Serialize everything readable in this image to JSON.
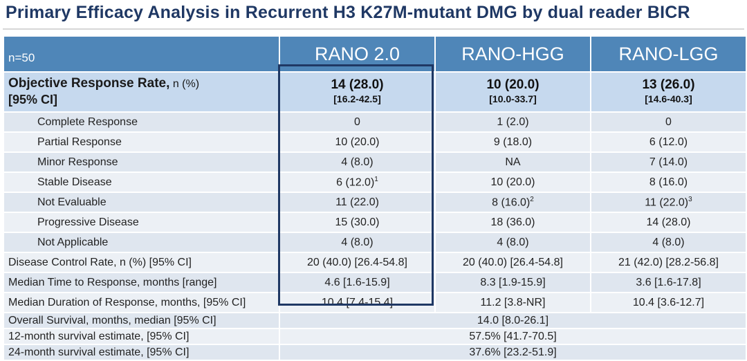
{
  "title": "Primary Efficacy Analysis in Recurrent H3 K27M-mutant DMG by dual reader BICR",
  "header": {
    "n": "n=50",
    "columns": [
      "RANO 2.0",
      "RANO-HGG",
      "RANO-LGG"
    ]
  },
  "orr": {
    "label": "Objective Response Rate,",
    "label_small": " n (%)",
    "label_ci": "[95% CI]",
    "values": [
      {
        "main": "14 (28.0)",
        "ci": "[16.2-42.5]"
      },
      {
        "main": "10 (20.0)",
        "ci": "[10.0-33.7]"
      },
      {
        "main": "13 (26.0)",
        "ci": "[14.6-40.3]"
      }
    ]
  },
  "response_rows": [
    {
      "label": "Complete Response",
      "values": [
        "0",
        "1 (2.0)",
        "0"
      ]
    },
    {
      "label": "Partial Response",
      "values": [
        "10 (20.0)",
        "9 (18.0)",
        "6 (12.0)"
      ]
    },
    {
      "label": "Minor Response",
      "values": [
        "4 (8.0)",
        "NA",
        "7 (14.0)"
      ]
    },
    {
      "label": "Stable Disease",
      "values": [
        "6 (12.0)",
        "10 (20.0)",
        "8 (16.0)"
      ],
      "sups": [
        "1",
        "",
        ""
      ]
    },
    {
      "label": "Not Evaluable",
      "values": [
        "11 (22.0)",
        "8 (16.0)",
        "11 (22.0)"
      ],
      "sups": [
        "",
        "2",
        "3"
      ]
    },
    {
      "label": "Progressive Disease",
      "values": [
        "15 (30.0)",
        "18 (36.0)",
        "14 (28.0)"
      ]
    },
    {
      "label": "Not Applicable",
      "values": [
        "4 (8.0)",
        "4 (8.0)",
        "4 (8.0)"
      ]
    }
  ],
  "summary_rows": [
    {
      "label": "Disease Control Rate, n (%) [95% CI]",
      "values": [
        "20 (40.0) [26.4-54.8]",
        "20 (40.0) [26.4-54.8]",
        "21 (42.0) [28.2-56.8]"
      ]
    },
    {
      "label": "Median Time to Response, months [range]",
      "values": [
        "4.6 [1.6-15.9]",
        "8.3 [1.9-15.9]",
        "3.6 [1.6-17.8]"
      ]
    },
    {
      "label": "Median Duration of Response, months, [95% CI]",
      "values": [
        "10.4 [7.4-15.4]",
        "11.2 [3.8-NR]",
        "10.4 [3.6-12.7]"
      ]
    }
  ],
  "survival_rows": [
    {
      "label": "Overall Survival, months, median [95% CI]",
      "value": "14.0 [8.0-26.1]"
    },
    {
      "label": "12-month survival estimate, [95% CI]",
      "value": "57.5% [41.7-70.5]"
    },
    {
      "label": "24-month survival estimate, [95% CI]",
      "value": "37.6% [23.2-51.9]"
    }
  ]
}
